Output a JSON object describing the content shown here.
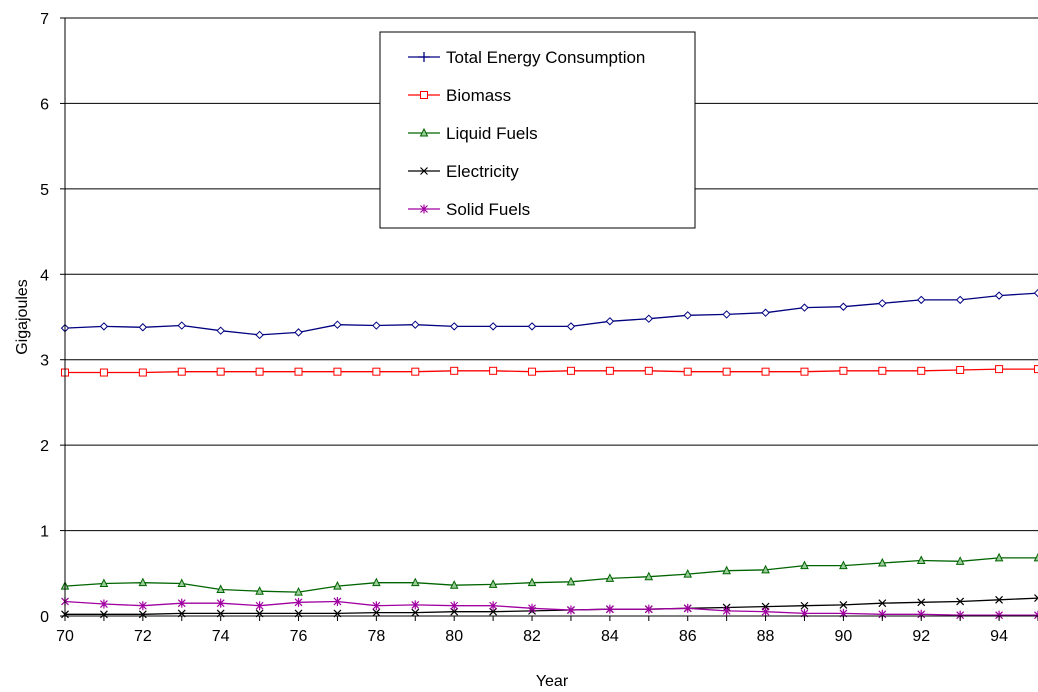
{
  "chart_data": {
    "type": "line",
    "title": "",
    "xlabel": "Year",
    "ylabel": "Gigajoules",
    "xlim": [
      70,
      95
    ],
    "ylim": [
      0,
      7
    ],
    "x_ticks": [
      "70",
      "72",
      "74",
      "76",
      "78",
      "80",
      "82",
      "84",
      "86",
      "88",
      "90",
      "92",
      "94"
    ],
    "y_ticks": [
      "0",
      "1",
      "2",
      "3",
      "4",
      "5",
      "6",
      "7"
    ],
    "grid": "horizontal",
    "legend_position": "top-center",
    "x": [
      70,
      71,
      72,
      73,
      74,
      75,
      76,
      77,
      78,
      79,
      80,
      81,
      82,
      83,
      84,
      85,
      86,
      87,
      88,
      89,
      90,
      91,
      92,
      93,
      94,
      95
    ],
    "series": [
      {
        "name": "Total Energy Consumption",
        "color": "#000080",
        "marker": "diamond",
        "values": [
          3.37,
          3.39,
          3.38,
          3.4,
          3.34,
          3.29,
          3.32,
          3.41,
          3.4,
          3.41,
          3.39,
          3.39,
          3.39,
          3.39,
          3.45,
          3.48,
          3.52,
          3.53,
          3.55,
          3.61,
          3.62,
          3.66,
          3.7,
          3.7,
          3.75,
          3.78
        ]
      },
      {
        "name": "Biomass",
        "color": "#FF0000",
        "marker": "square",
        "values": [
          2.85,
          2.85,
          2.85,
          2.86,
          2.86,
          2.86,
          2.86,
          2.86,
          2.86,
          2.86,
          2.87,
          2.87,
          2.86,
          2.87,
          2.87,
          2.87,
          2.86,
          2.86,
          2.86,
          2.86,
          2.87,
          2.87,
          2.87,
          2.88,
          2.89,
          2.89
        ]
      },
      {
        "name": "Liquid Fuels",
        "color": "#006400",
        "marker": "triangle",
        "values": [
          0.35,
          0.38,
          0.39,
          0.38,
          0.31,
          0.29,
          0.28,
          0.35,
          0.39,
          0.39,
          0.36,
          0.37,
          0.39,
          0.4,
          0.44,
          0.46,
          0.49,
          0.53,
          0.54,
          0.59,
          0.59,
          0.62,
          0.65,
          0.64,
          0.68,
          0.68
        ]
      },
      {
        "name": "Electricity",
        "color": "#000000",
        "marker": "x",
        "values": [
          0.02,
          0.02,
          0.02,
          0.03,
          0.03,
          0.03,
          0.03,
          0.03,
          0.04,
          0.04,
          0.05,
          0.05,
          0.06,
          0.07,
          0.08,
          0.08,
          0.09,
          0.1,
          0.11,
          0.12,
          0.13,
          0.15,
          0.16,
          0.17,
          0.19,
          0.21
        ]
      },
      {
        "name": "Solid Fuels",
        "color": "#A000A0",
        "marker": "asterisk",
        "values": [
          0.17,
          0.14,
          0.12,
          0.15,
          0.15,
          0.12,
          0.16,
          0.17,
          0.12,
          0.13,
          0.12,
          0.12,
          0.09,
          0.07,
          0.08,
          0.08,
          0.09,
          0.06,
          0.05,
          0.03,
          0.03,
          0.02,
          0.02,
          0.01,
          0.01,
          0.01
        ]
      }
    ]
  }
}
